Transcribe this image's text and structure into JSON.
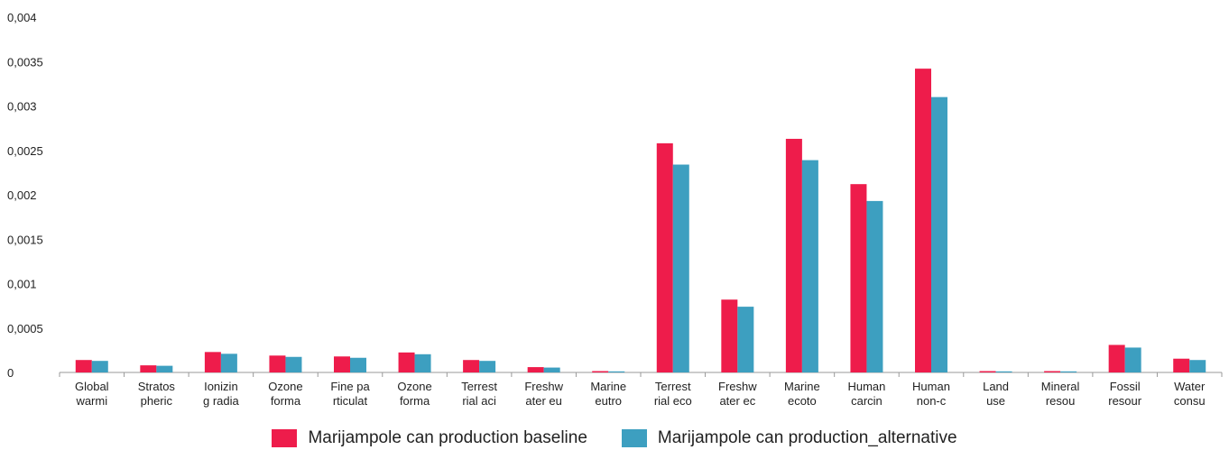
{
  "chart_data": {
    "type": "bar",
    "categories": [
      [
        "Global",
        "warmi"
      ],
      [
        "Stratos",
        "pheric"
      ],
      [
        "Ionizin",
        "g radia"
      ],
      [
        "Ozone",
        "forma"
      ],
      [
        "Fine pa",
        "rticulat"
      ],
      [
        "Ozone",
        "forma"
      ],
      [
        "Terrest",
        "rial aci"
      ],
      [
        "Freshw",
        "ater eu"
      ],
      [
        "Marine",
        "eutro"
      ],
      [
        "Terrest",
        "rial eco"
      ],
      [
        "Freshw",
        "ater ec"
      ],
      [
        "Marine",
        "ecoto"
      ],
      [
        "Human",
        "carcin"
      ],
      [
        "Human",
        "non-c"
      ],
      [
        "Land",
        "use"
      ],
      [
        "Mineral",
        "resou"
      ],
      [
        "Fossil",
        "resour"
      ],
      [
        "Water",
        "consu"
      ]
    ],
    "series": [
      {
        "name": "Marijampole can production baseline",
        "color": "#ee1c4b",
        "values": [
          0.00014,
          8e-05,
          0.00023,
          0.00019,
          0.00018,
          0.000225,
          0.00014,
          6e-05,
          1.5e-05,
          0.00258,
          0.00082,
          0.00263,
          0.00212,
          0.00342,
          1.5e-05,
          1.5e-05,
          0.00031,
          0.000155
        ]
      },
      {
        "name": "Marijampole can production_alternative",
        "color": "#3d9fc0",
        "values": [
          0.00013,
          7.5e-05,
          0.00021,
          0.000175,
          0.000165,
          0.000205,
          0.00013,
          5.5e-05,
          1.2e-05,
          0.00234,
          0.00074,
          0.00239,
          0.00193,
          0.0031,
          1.2e-05,
          1.2e-05,
          0.00028,
          0.00014
        ]
      }
    ],
    "yticks": [
      "0",
      "0,0005",
      "0,001",
      "0,0015",
      "0,002",
      "0,0025",
      "0,003",
      "0,0035",
      "0,004"
    ],
    "ytick_values": [
      0,
      0.0005,
      0.001,
      0.0015,
      0.002,
      0.0025,
      0.003,
      0.0035,
      0.004
    ],
    "ylim": [
      0,
      0.004
    ],
    "legend_position": "bottom-center",
    "grid": false
  }
}
